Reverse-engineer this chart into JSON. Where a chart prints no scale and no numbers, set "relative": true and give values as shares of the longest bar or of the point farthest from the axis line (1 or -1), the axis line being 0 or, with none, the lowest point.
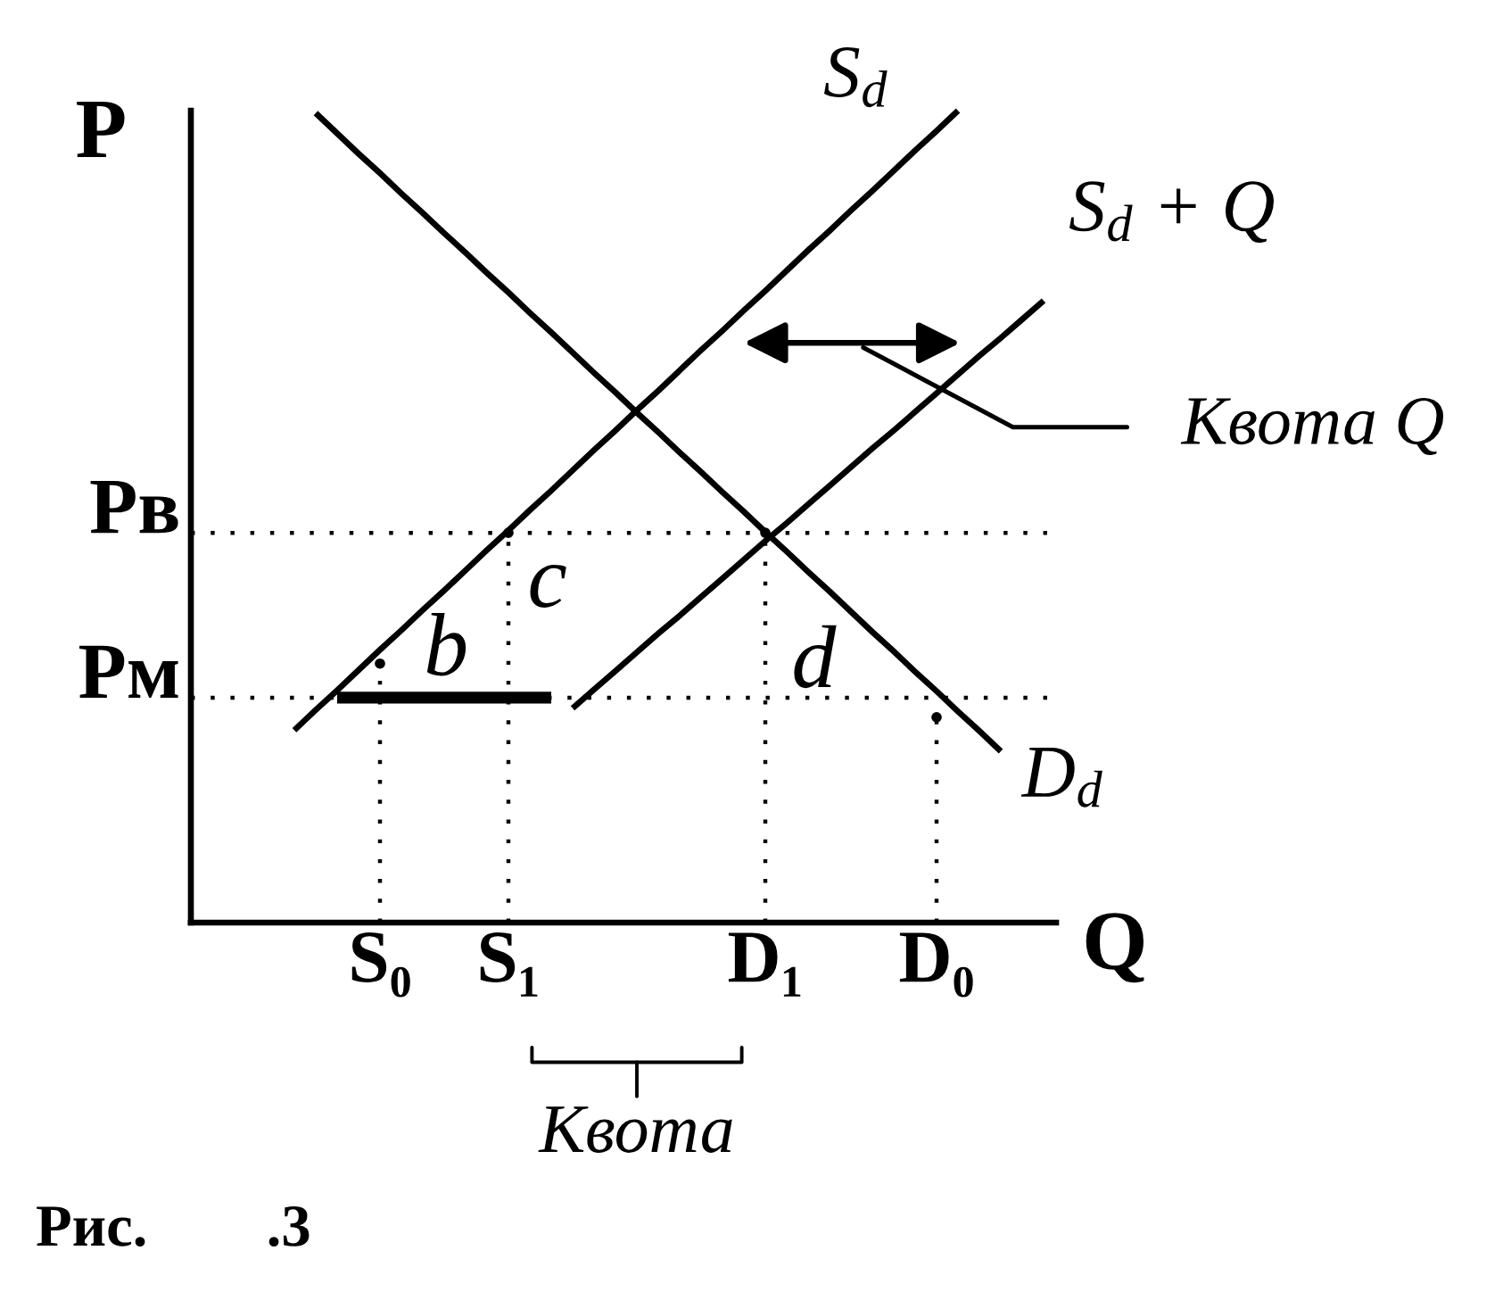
{
  "chart_data": {
    "type": "line",
    "relative": true,
    "xlabel": "Q",
    "ylabel": "P",
    "categories": [
      null,
      null,
      null,
      null,
      null,
      null,
      null,
      null,
      "S₀",
      null,
      null,
      null,
      null,
      null,
      "S₁",
      null,
      null,
      null,
      null,
      null,
      null,
      null,
      null,
      null,
      null,
      null,
      "D₁",
      null,
      null,
      null,
      null,
      null,
      null,
      null,
      "D₀",
      null,
      null,
      null,
      null,
      null
    ],
    "series": [
      {
        "name": "D$_{d}$",
        "color": "#000000",
        "values": [
          null,
          null,
          null,
          null,
          null,
          0.997,
          0.972,
          0.947,
          0.923,
          0.898,
          0.874,
          0.849,
          0.825,
          0.8,
          0.776,
          0.751,
          0.727,
          0.702,
          0.677,
          0.653,
          0.628,
          0.604,
          0.579,
          0.555,
          0.53,
          0.506,
          0.481,
          0.457,
          0.432,
          0.408,
          0.383,
          0.358,
          0.334,
          0.309,
          0.285,
          0.26,
          0.236,
          0.211,
          null,
          null
        ]
      },
      {
        "name": "S$_{d}$",
        "color": "#000000",
        "values": [
          null,
          null,
          null,
          null,
          0.237,
          0.262,
          0.286,
          0.311,
          0.336,
          0.36,
          0.385,
          0.409,
          0.434,
          0.459,
          0.483,
          0.508,
          0.532,
          0.557,
          0.582,
          0.606,
          0.631,
          0.655,
          0.68,
          0.705,
          0.729,
          0.754,
          0.778,
          0.803,
          0.828,
          0.852,
          0.877,
          0.901,
          0.926,
          0.951,
          0.975,
          1.0,
          null,
          null,
          null,
          null
        ]
      },
      {
        "name": "S$_{d}$ + Q",
        "color": "#000000",
        "values": [
          null,
          null,
          null,
          null,
          null,
          null,
          null,
          null,
          null,
          null,
          null,
          null,
          null,
          null,
          null,
          null,
          null,
          0.264,
          0.287,
          0.31,
          0.333,
          0.356,
          0.378,
          0.401,
          0.424,
          0.447,
          0.47,
          0.492,
          0.515,
          0.538,
          0.561,
          0.584,
          0.606,
          0.629,
          0.652,
          0.675,
          0.698,
          0.72,
          0.743,
          0.766
        ]
      },
      {
        "color": "#000000",
        "values": [
          null,
          null,
          null,
          null,
          null,
          null,
          0.277,
          0.277,
          0.277,
          0.277,
          0.277,
          0.277,
          0.277,
          0.277,
          0.277,
          0.277,
          0.277,
          null,
          null,
          null,
          null,
          null,
          null,
          null,
          null,
          null,
          null,
          null,
          null,
          null,
          null,
          null,
          null,
          null,
          null,
          null,
          null,
          null,
          null,
          null
        ]
      },
      {
        "type": "lollipop",
        "color": "#000000",
        "line_style": "dotted",
        "marker": "circle",
        "values": [
          null,
          null,
          null,
          null,
          null,
          null,
          null,
          null,
          0.319,
          null,
          null,
          null,
          null,
          null,
          0.48,
          null,
          null,
          null,
          null,
          null,
          null,
          null,
          null,
          null,
          null,
          null,
          0.48,
          null,
          null,
          null,
          null,
          null,
          null,
          null,
          0.253,
          null,
          null,
          null,
          null,
          null
        ]
      }
    ],
    "ref_lines": [
      {
        "axis": "y",
        "value": 0.48,
        "label": "Pв",
        "line_style": "dotted",
        "color": "#000000"
      },
      {
        "axis": "y",
        "value": 0.277,
        "label": "Pм",
        "line_style": "dotted",
        "color": "#000000"
      }
    ],
    "annotations": [
      "b",
      "c",
      "d",
      "Квота Q",
      "Квота",
      "Рис.        .3"
    ]
  }
}
